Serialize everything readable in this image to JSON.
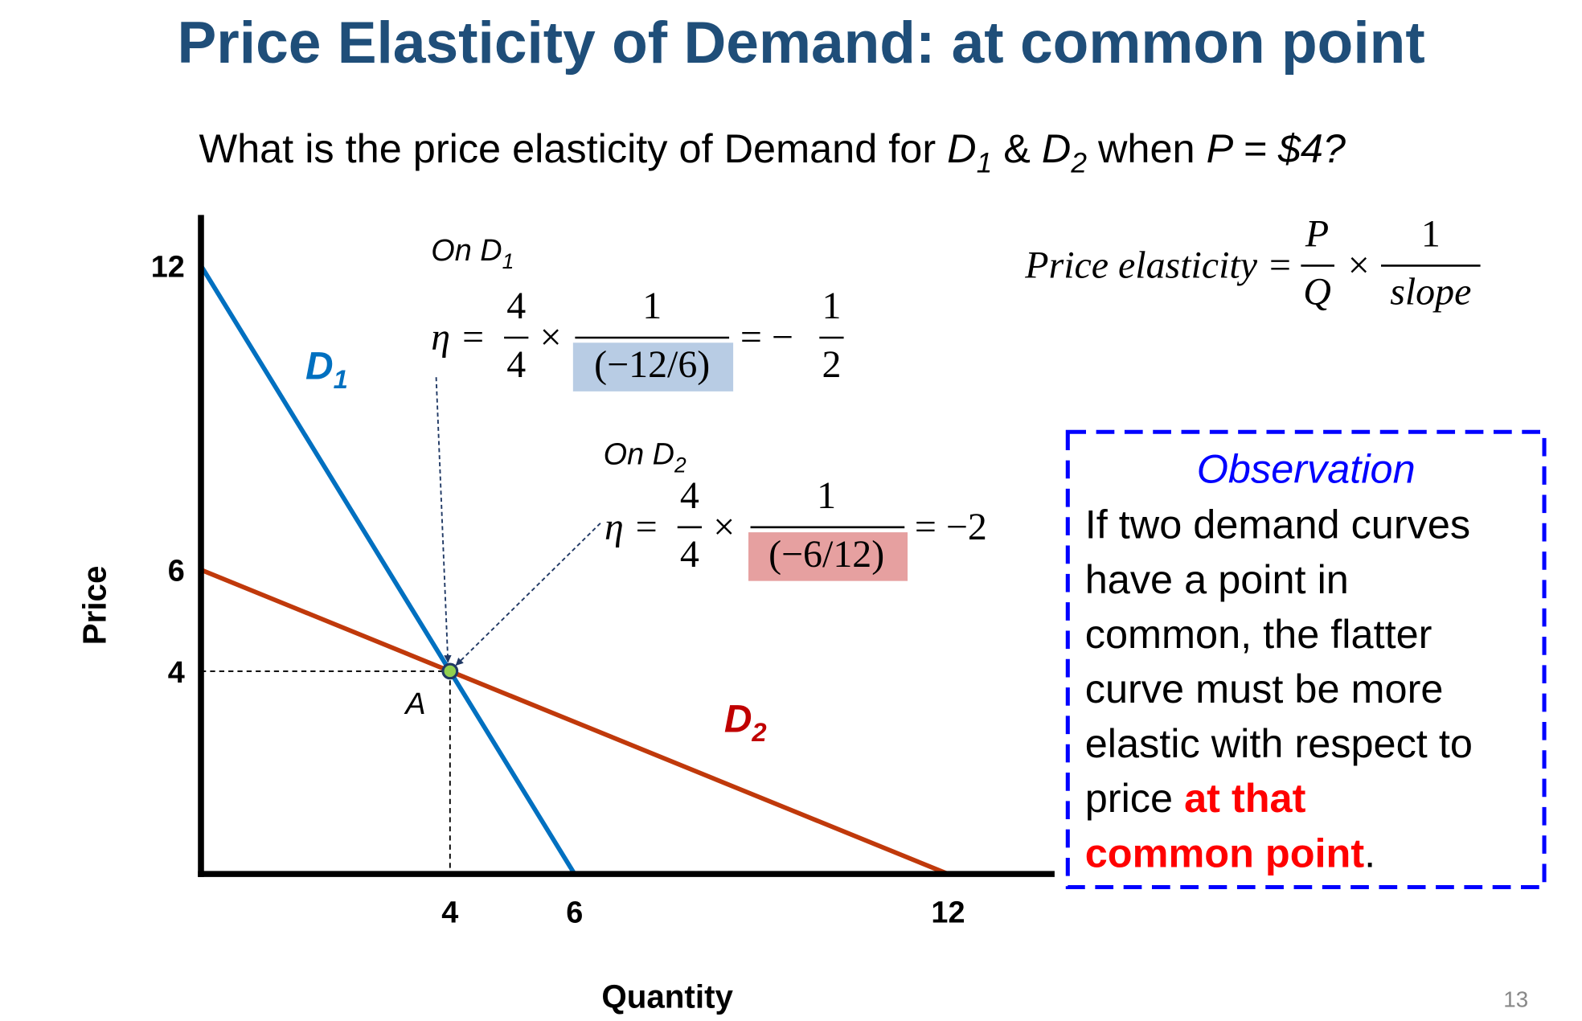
{
  "title": "Price Elasticity of Demand: at common point",
  "question": [
    "What is the price elasticity of Demand  for ",
    "D",
    "1",
    " & ",
    "D",
    "2",
    " when ",
    "P = $4?"
  ],
  "formula": {
    "lhs": "Price elasticity =",
    "num1": "P",
    "den1": "Q",
    "times": "×",
    "num2": "1",
    "den2": "slope"
  },
  "on_d1": {
    "label": [
      "On D",
      "1"
    ],
    "eta": "η =",
    "num1": "4",
    "den1": "4",
    "times": "×",
    "num2": "1",
    "den2": "(−12/6)",
    "eq": "= −",
    "num3": "1",
    "den3": "2"
  },
  "on_d2": {
    "label": [
      "On D",
      "2"
    ],
    "eta": "η =",
    "num1": "4",
    "den1": "4",
    "times": "×",
    "num2": "1",
    "den2": "(−6/12)",
    "eq": "= −2"
  },
  "observation": {
    "title": "Observation",
    "body": [
      "If two demand curves",
      "have a point in",
      "common, the flatter",
      "curve must be more",
      "elastic with respect to",
      "price "
    ],
    "emphasis": [
      "at that",
      "common point"
    ],
    "end": "."
  },
  "page_number": "13",
  "chart_data": {
    "type": "line",
    "x_label": "Quantity",
    "y_label": "Price",
    "xlim": [
      0,
      13.71
    ],
    "ylim": [
      0,
      13
    ],
    "xticks": [
      4,
      6,
      12
    ],
    "yticks": [
      4,
      6,
      12
    ],
    "series": [
      {
        "name": "D",
        "subscript": "1",
        "color": "#0070c0",
        "x": [
          0,
          6
        ],
        "values": [
          12,
          0
        ]
      },
      {
        "name": "D",
        "subscript": "2",
        "color": "#c0390b",
        "x": [
          0,
          12
        ],
        "values": [
          6,
          0
        ]
      }
    ],
    "point": {
      "label": "A",
      "x": 4,
      "y": 4,
      "color": "#92d050"
    }
  }
}
